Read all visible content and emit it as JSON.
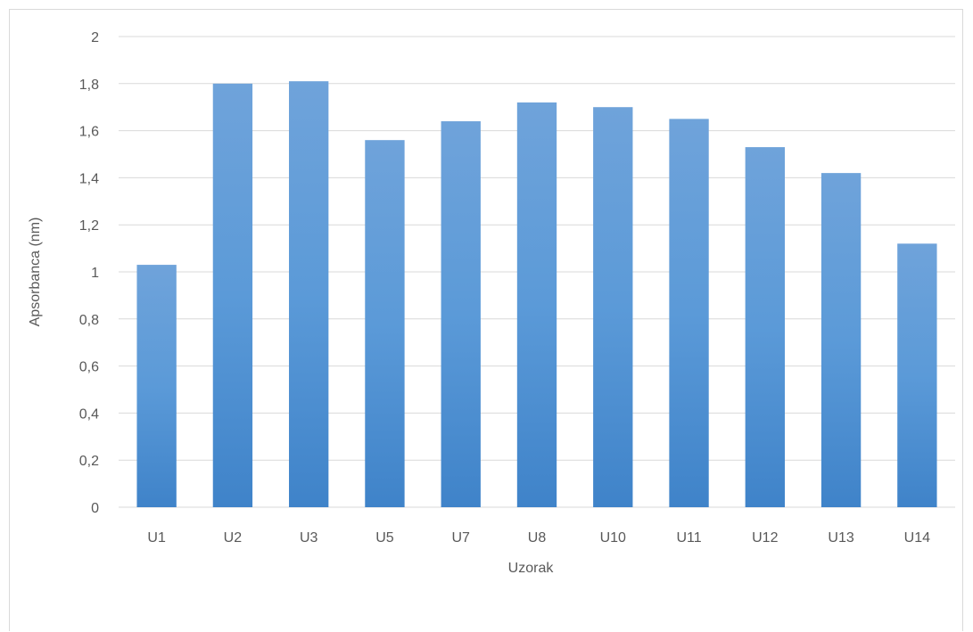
{
  "chart_data": {
    "type": "bar",
    "title": "",
    "xlabel": "Uzorak",
    "ylabel": "Apsorbanca (nm)",
    "categories": [
      "U1",
      "U2",
      "U3",
      "U5",
      "U7",
      "U8",
      "U10",
      "U11",
      "U12",
      "U13",
      "U14"
    ],
    "values": [
      1.03,
      1.8,
      1.81,
      1.56,
      1.64,
      1.72,
      1.7,
      1.65,
      1.53,
      1.42,
      1.12
    ],
    "ylim": [
      0,
      2
    ],
    "yticks": [
      "0",
      "0,2",
      "0,4",
      "0,6",
      "0,8",
      "1",
      "1,2",
      "1,4",
      "1,6",
      "1,8",
      "2"
    ],
    "grid": true,
    "legend": "none",
    "colors": {
      "bar_top": "#6fa3da",
      "bar_bottom": "#3f83c9",
      "grid": "#d9d9d9",
      "text": "#595959"
    }
  }
}
